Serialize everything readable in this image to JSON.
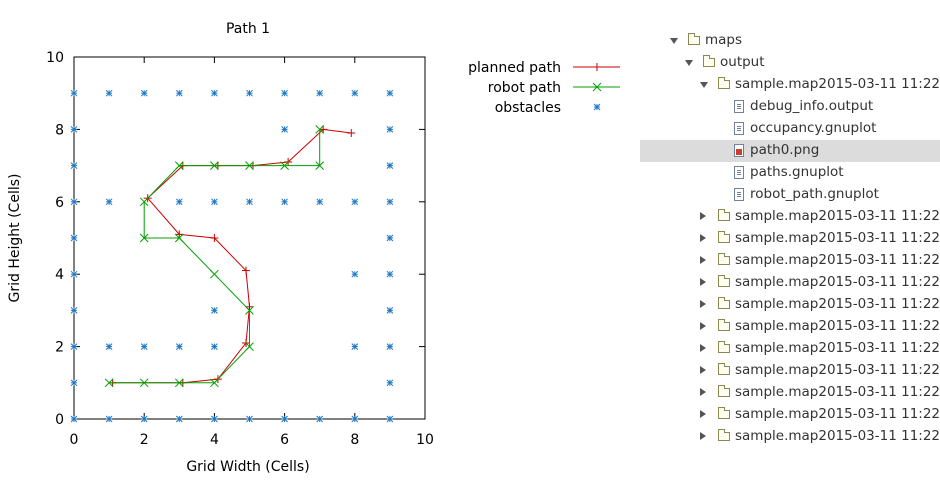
{
  "chart_data": {
    "type": "line",
    "title": "Path 1",
    "xlabel": "Grid Width (Cells)",
    "ylabel": "Grid Height (Cells)",
    "xlim": [
      0,
      10
    ],
    "ylim": [
      0,
      10
    ],
    "xticks": [
      "0",
      "2",
      "4",
      "6",
      "8",
      "10"
    ],
    "yticks": [
      "0",
      "2",
      "4",
      "6",
      "8",
      "10"
    ],
    "grid": false,
    "legend": "outside-right-top",
    "series": [
      {
        "name": "planned path",
        "color": "#cc0000",
        "marker": "plus",
        "points": [
          [
            1.1,
            1
          ],
          [
            3.1,
            1
          ],
          [
            4.1,
            1.1
          ],
          [
            4.9,
            2.1
          ],
          [
            5,
            3.1
          ],
          [
            4.9,
            4.1
          ],
          [
            4,
            5
          ],
          [
            3,
            5.1
          ],
          [
            2.1,
            6.1
          ],
          [
            3.1,
            7
          ],
          [
            4.1,
            7
          ],
          [
            5.1,
            7
          ],
          [
            6.1,
            7.1
          ],
          [
            7.1,
            8
          ],
          [
            7.9,
            7.9
          ]
        ]
      },
      {
        "name": "robot path",
        "color": "#00a000",
        "marker": "x",
        "points": [
          [
            1,
            1
          ],
          [
            2,
            1
          ],
          [
            3,
            1
          ],
          [
            4,
            1
          ],
          [
            5,
            2
          ],
          [
            5,
            3
          ],
          [
            4,
            4
          ],
          [
            3,
            5
          ],
          [
            2,
            5
          ],
          [
            2,
            6
          ],
          [
            3,
            7
          ],
          [
            4,
            7
          ],
          [
            5,
            7
          ],
          [
            6,
            7
          ],
          [
            7,
            7
          ],
          [
            7,
            8
          ]
        ]
      },
      {
        "name": "obstacles",
        "color": "#1f77c4",
        "marker": "star",
        "points": [
          [
            0,
            9
          ],
          [
            1,
            9
          ],
          [
            2,
            9
          ],
          [
            3,
            9
          ],
          [
            4,
            9
          ],
          [
            5,
            9
          ],
          [
            6,
            9
          ],
          [
            7,
            9
          ],
          [
            8,
            9
          ],
          [
            9,
            9
          ],
          [
            0,
            8
          ],
          [
            6,
            8
          ],
          [
            9,
            8
          ],
          [
            0,
            7
          ],
          [
            9,
            7
          ],
          [
            0,
            6
          ],
          [
            1,
            6
          ],
          [
            3,
            6
          ],
          [
            4,
            6
          ],
          [
            5,
            6
          ],
          [
            6,
            6
          ],
          [
            7,
            6
          ],
          [
            8,
            6
          ],
          [
            9,
            6
          ],
          [
            0,
            5
          ],
          [
            9,
            5
          ],
          [
            0,
            4
          ],
          [
            8,
            4
          ],
          [
            9,
            4
          ],
          [
            0,
            3
          ],
          [
            4,
            3
          ],
          [
            9,
            3
          ],
          [
            0,
            2
          ],
          [
            1,
            2
          ],
          [
            2,
            2
          ],
          [
            3,
            2
          ],
          [
            4,
            2
          ],
          [
            8,
            2
          ],
          [
            9,
            2
          ],
          [
            0,
            1
          ],
          [
            9,
            1
          ],
          [
            0,
            0
          ],
          [
            1,
            0
          ],
          [
            2,
            0
          ],
          [
            3,
            0
          ],
          [
            4,
            0
          ],
          [
            5,
            0
          ],
          [
            6,
            0
          ],
          [
            7,
            0
          ],
          [
            8,
            0
          ],
          [
            9,
            0
          ]
        ]
      }
    ]
  },
  "tree": [
    {
      "label": "maps",
      "type": "folder",
      "depth": 0,
      "expanded": true
    },
    {
      "label": "output",
      "type": "folder",
      "depth": 1,
      "expanded": true
    },
    {
      "label": "sample.map2015-03-11 11:22",
      "type": "folder",
      "depth": 2,
      "expanded": true
    },
    {
      "label": "debug_info.output",
      "type": "file",
      "depth": 3
    },
    {
      "label": "occupancy.gnuplot",
      "type": "file",
      "depth": 3
    },
    {
      "label": "path0.png",
      "type": "image",
      "depth": 3,
      "selected": true
    },
    {
      "label": "paths.gnuplot",
      "type": "file",
      "depth": 3
    },
    {
      "label": "robot_path.gnuplot",
      "type": "file",
      "depth": 3
    },
    {
      "label": "sample.map2015-03-11 11:22",
      "type": "folder",
      "depth": 2,
      "expanded": false
    },
    {
      "label": "sample.map2015-03-11 11:22",
      "type": "folder",
      "depth": 2,
      "expanded": false
    },
    {
      "label": "sample.map2015-03-11 11:22",
      "type": "folder",
      "depth": 2,
      "expanded": false
    },
    {
      "label": "sample.map2015-03-11 11:22",
      "type": "folder",
      "depth": 2,
      "expanded": false
    },
    {
      "label": "sample.map2015-03-11 11:22",
      "type": "folder",
      "depth": 2,
      "expanded": false
    },
    {
      "label": "sample.map2015-03-11 11:22",
      "type": "folder",
      "depth": 2,
      "expanded": false
    },
    {
      "label": "sample.map2015-03-11 11:22",
      "type": "folder",
      "depth": 2,
      "expanded": false
    },
    {
      "label": "sample.map2015-03-11 11:22",
      "type": "folder",
      "depth": 2,
      "expanded": false
    },
    {
      "label": "sample.map2015-03-11 11:22",
      "type": "folder",
      "depth": 2,
      "expanded": false
    },
    {
      "label": "sample.map2015-03-11 11:22",
      "type": "folder",
      "depth": 2,
      "expanded": false
    },
    {
      "label": "sample.map2015-03-11 11:22",
      "type": "folder",
      "depth": 2,
      "expanded": false
    }
  ]
}
